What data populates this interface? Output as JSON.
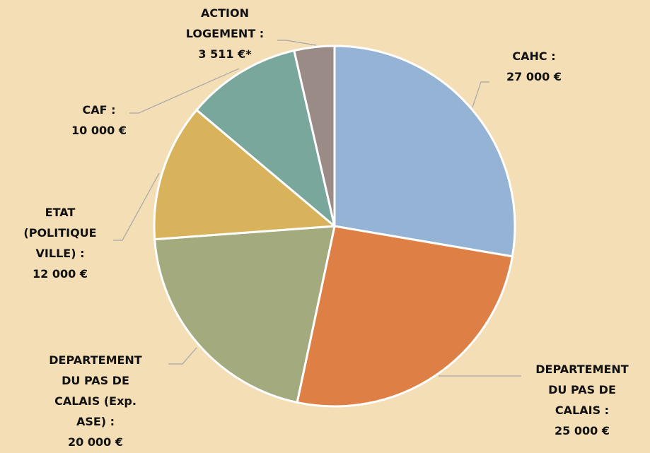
{
  "chart_data": {
    "type": "pie",
    "categories": [
      "CAHC :",
      "DEPARTEMENT DU PAS DE CALAIS :",
      "DEPARTEMENT DU PAS DE CALAIS (Exp. ASE) :",
      "ETAT (POLITIQUE VILLE) :",
      "CAF :",
      "ACTION LOGEMENT :"
    ],
    "values": [
      27000,
      25000,
      20000,
      12000,
      10000,
      3511
    ],
    "value_labels": [
      "27 000 €",
      "25 000 €",
      "20 000 €",
      "12 000 €",
      "10 000 €",
      "3 511 €*"
    ],
    "colors": [
      "#95b3d4",
      "#de8046",
      "#a3aa7e",
      "#d9b25c",
      "#7aa79c",
      "#9a8b87"
    ]
  }
}
